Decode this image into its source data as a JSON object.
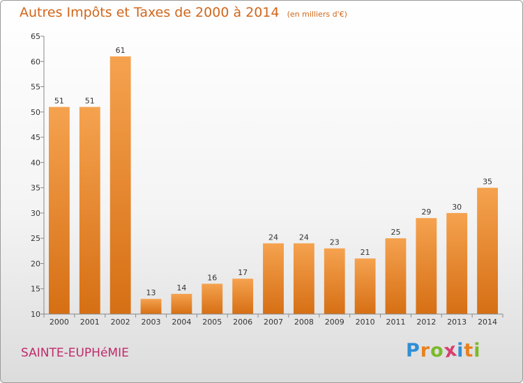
{
  "chart_data": {
    "type": "bar",
    "title": "Autres Impôts et Taxes de 2000 à 2014",
    "unit_label": "(en milliers d'€)",
    "categories": [
      "2000",
      "2001",
      "2002",
      "2003",
      "2004",
      "2005",
      "2006",
      "2007",
      "2008",
      "2009",
      "2010",
      "2011",
      "2012",
      "2013",
      "2014"
    ],
    "values": [
      51,
      51,
      61,
      13,
      14,
      16,
      17,
      24,
      24,
      23,
      21,
      25,
      29,
      30,
      35
    ],
    "ylim": [
      10,
      65
    ],
    "yticks": [
      10,
      15,
      20,
      25,
      30,
      35,
      40,
      45,
      50,
      55,
      60,
      65
    ],
    "xlabel": "",
    "ylabel": "",
    "grid": false,
    "colors": {
      "bar_light": "#f5a24f",
      "bar_dark": "#d66f14",
      "label": "#333333",
      "axis": "#888888"
    }
  },
  "commune": "SAINTE-EUPHéMIE",
  "logo": {
    "letters": [
      "P",
      "r",
      "o",
      "x",
      "i",
      "t",
      "i"
    ],
    "colors": [
      "#2f8fd6",
      "#e8811e",
      "#7aba2a",
      "#d83f6c",
      "#2f8fd6",
      "#e8811e",
      "#7aba2a"
    ]
  }
}
